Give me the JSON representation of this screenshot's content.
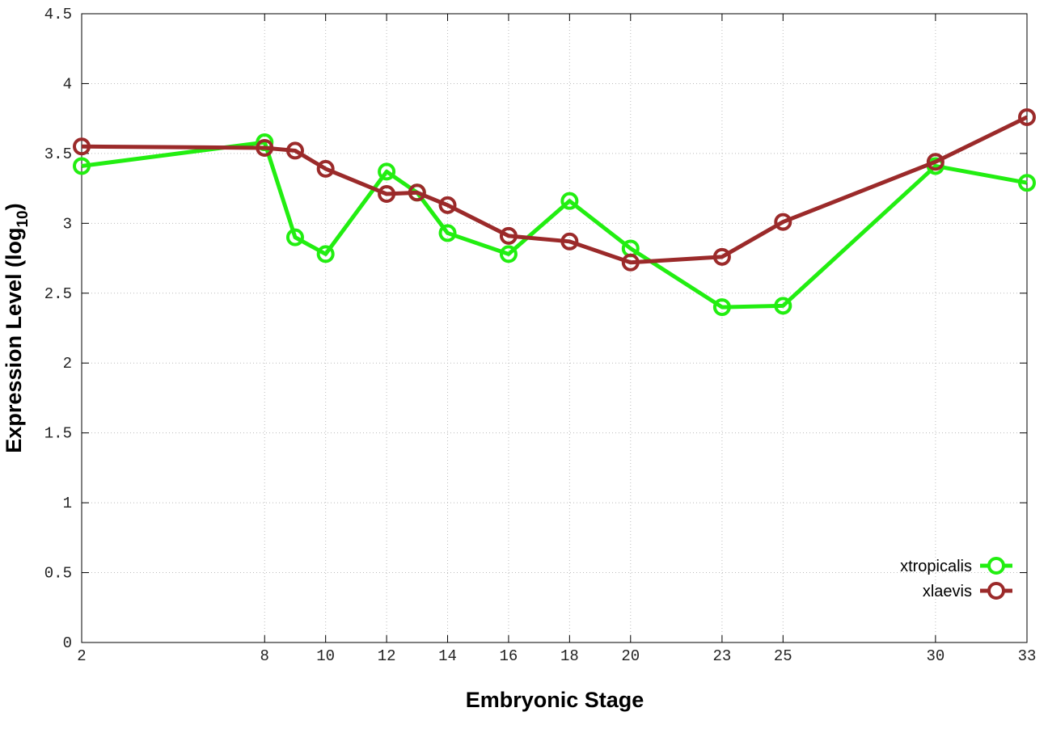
{
  "chart_data": {
    "type": "line",
    "xlabel": "Embryonic Stage",
    "ylabel": {
      "text": "Expression Level (log",
      "subscript": "10",
      "suffix": ")"
    },
    "x": [
      2,
      8,
      9,
      10,
      12,
      13,
      14,
      16,
      18,
      20,
      23,
      25,
      30,
      33
    ],
    "series": [
      {
        "name": "xtropicalis",
        "color": "#22ee11",
        "values": [
          3.41,
          3.58,
          2.9,
          2.78,
          3.37,
          3.22,
          2.93,
          2.78,
          3.16,
          2.82,
          2.4,
          2.41,
          3.41,
          3.29
        ]
      },
      {
        "name": "xlaevis",
        "color": "#9b2a2a",
        "values": [
          3.55,
          3.54,
          3.52,
          3.39,
          3.21,
          3.22,
          3.13,
          2.91,
          2.87,
          2.72,
          2.76,
          3.01,
          3.44,
          3.76
        ]
      }
    ],
    "xlim": [
      2,
      33
    ],
    "xticks": [
      2,
      8,
      10,
      12,
      14,
      16,
      18,
      20,
      23,
      25,
      30,
      33
    ],
    "ylim": [
      0,
      4.5
    ],
    "yticks": [
      0,
      0.5,
      1,
      1.5,
      2,
      2.5,
      3,
      3.5,
      4,
      4.5
    ],
    "grid": true,
    "legend": "lower right"
  }
}
